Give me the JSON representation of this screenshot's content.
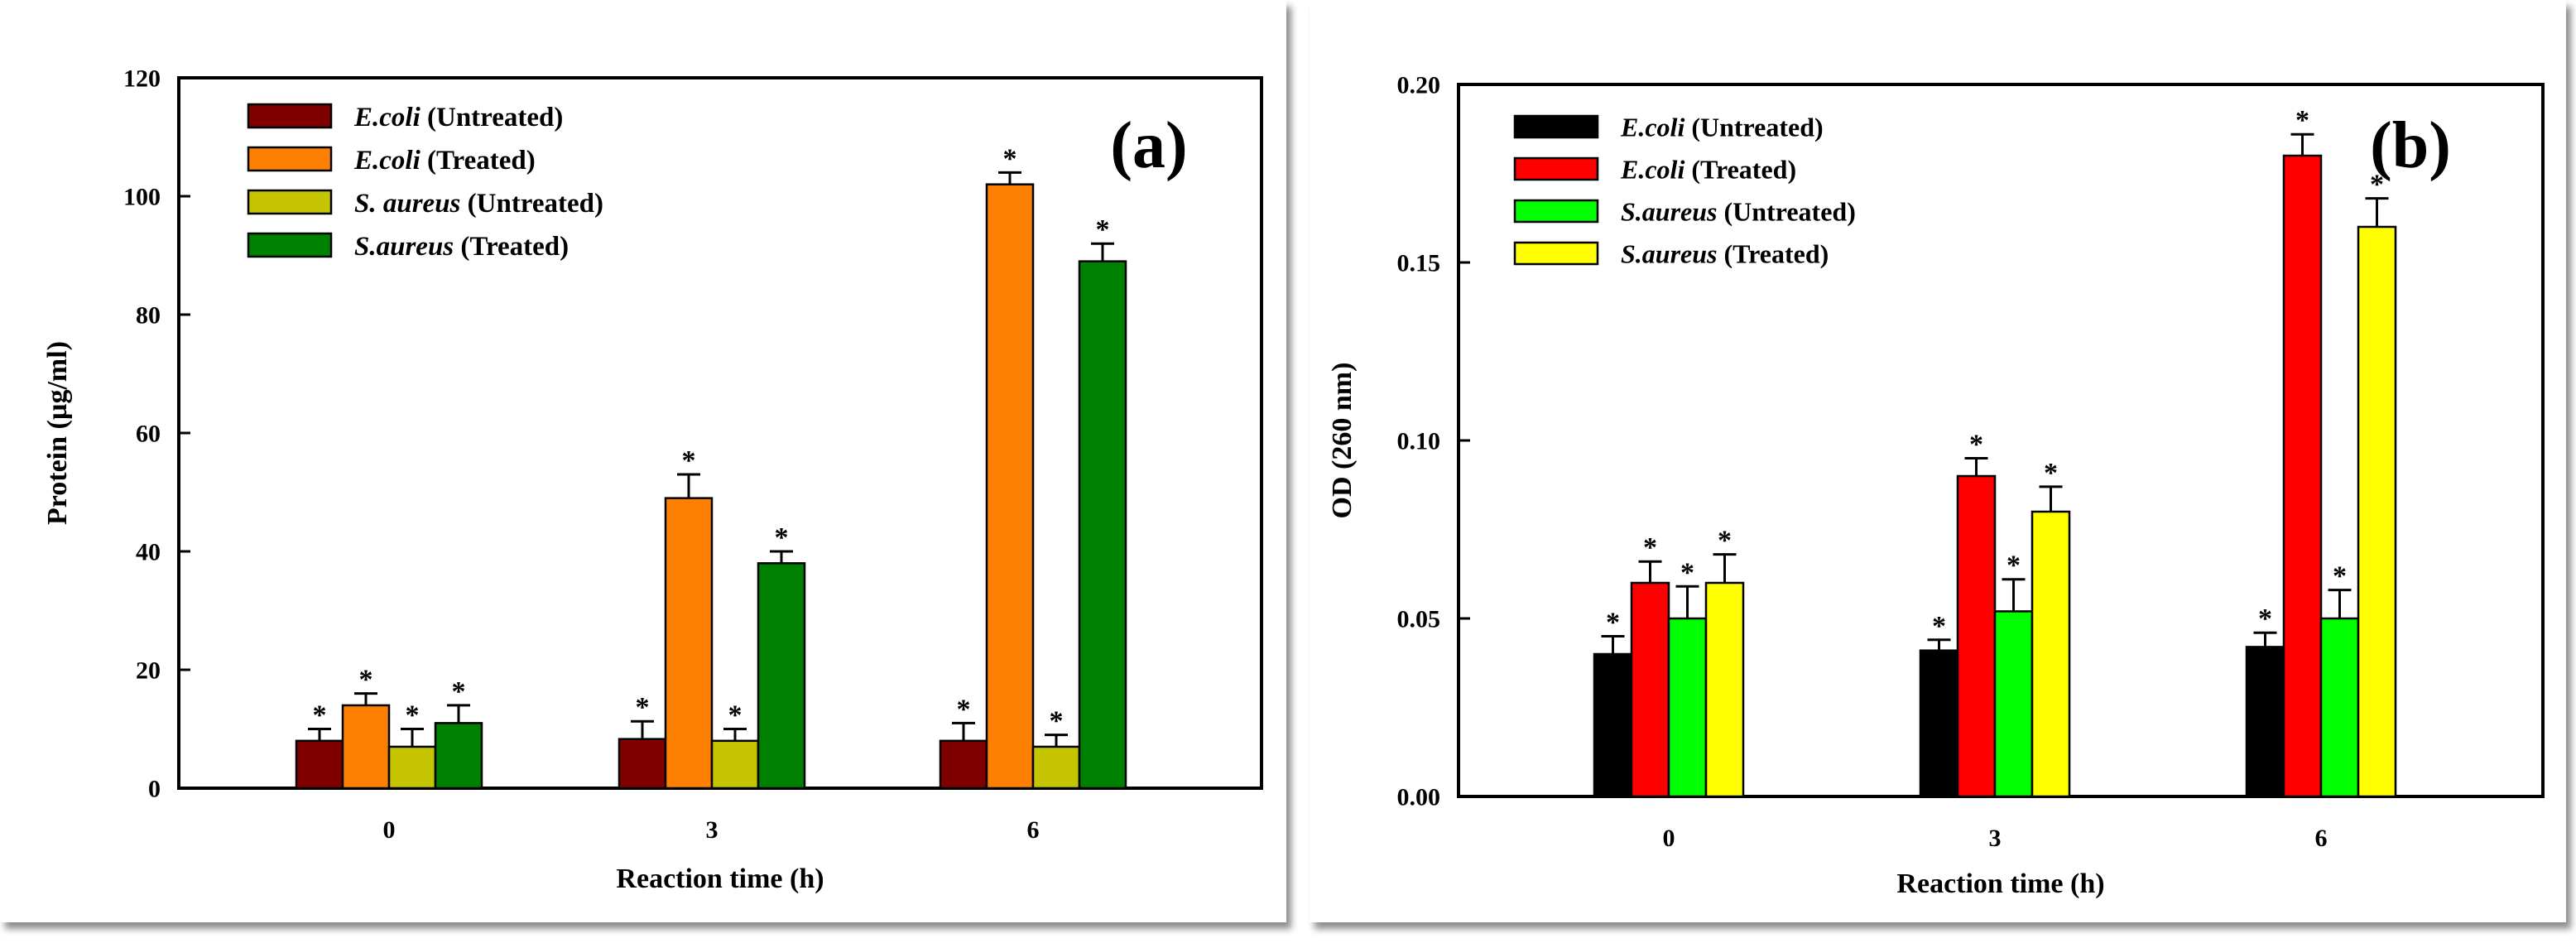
{
  "chart_data": [
    {
      "type": "bar",
      "panel_label": "(a)",
      "xlabel": "Reaction time (h)",
      "ylabel": "Protein (µg/ml)",
      "categories": [
        "0",
        "3",
        "6"
      ],
      "ylim": [
        0,
        120
      ],
      "yticks": [
        "0",
        "20",
        "40",
        "60",
        "80",
        "100",
        "120"
      ],
      "legend_position": "top-left",
      "series": [
        {
          "name_italic": "E.coli",
          "name_rest": " (Untreated)",
          "color": "#800000",
          "values": [
            8,
            8.3,
            8
          ],
          "errors": [
            2,
            3,
            3
          ],
          "markers": [
            "*",
            "*",
            "*"
          ]
        },
        {
          "name_italic": "E.coli",
          "name_rest": " (Treated)",
          "color": "#ff8000",
          "values": [
            14,
            49,
            102
          ],
          "errors": [
            2,
            4,
            2
          ],
          "markers": [
            "*",
            "*",
            "*"
          ]
        },
        {
          "name_italic": "S. aureus",
          "name_rest": " (Untreated)",
          "color": "#c4c400",
          "values": [
            7,
            8,
            7
          ],
          "errors": [
            3,
            2,
            2
          ],
          "markers": [
            "*",
            "*",
            "*"
          ]
        },
        {
          "name_italic": "S.aureus",
          "name_rest": " (Treated)",
          "color": "#008000",
          "values": [
            11,
            38,
            89
          ],
          "errors": [
            3,
            2,
            3
          ],
          "markers": [
            "*",
            "*",
            "*"
          ]
        }
      ]
    },
    {
      "type": "bar",
      "panel_label": "(b)",
      "xlabel": "Reaction time (h)",
      "ylabel": "OD (260 nm)",
      "categories": [
        "0",
        "3",
        "6"
      ],
      "ylim": [
        0,
        0.2
      ],
      "yticks": [
        "0.00",
        "0.05",
        "0.10",
        "0.15",
        "0.20"
      ],
      "legend_position": "top-left",
      "series": [
        {
          "name_italic": "E.coli",
          "name_rest": " (Untreated)",
          "color": "#000000",
          "values": [
            0.04,
            0.041,
            0.042
          ],
          "errors": [
            0.005,
            0.003,
            0.004
          ],
          "markers": [
            "*",
            "*",
            "*"
          ]
        },
        {
          "name_italic": "E.coli",
          "name_rest": " (Treated)",
          "color": "#ff0000",
          "values": [
            0.06,
            0.09,
            0.18
          ],
          "errors": [
            0.006,
            0.005,
            0.006
          ],
          "markers": [
            "*",
            "*",
            "*"
          ]
        },
        {
          "name_italic": "S.aureus",
          "name_rest": " (Untreated)",
          "color": "#00ff00",
          "values": [
            0.05,
            0.052,
            0.05
          ],
          "errors": [
            0.009,
            0.009,
            0.008
          ],
          "markers": [
            "*",
            "*",
            "*"
          ]
        },
        {
          "name_italic": "S.aureus",
          "name_rest": " (Treated)",
          "color": "#ffff00",
          "values": [
            0.06,
            0.08,
            0.16
          ],
          "errors": [
            0.008,
            0.007,
            0.008
          ],
          "markers": [
            "*",
            "*",
            "*"
          ]
        }
      ]
    }
  ]
}
